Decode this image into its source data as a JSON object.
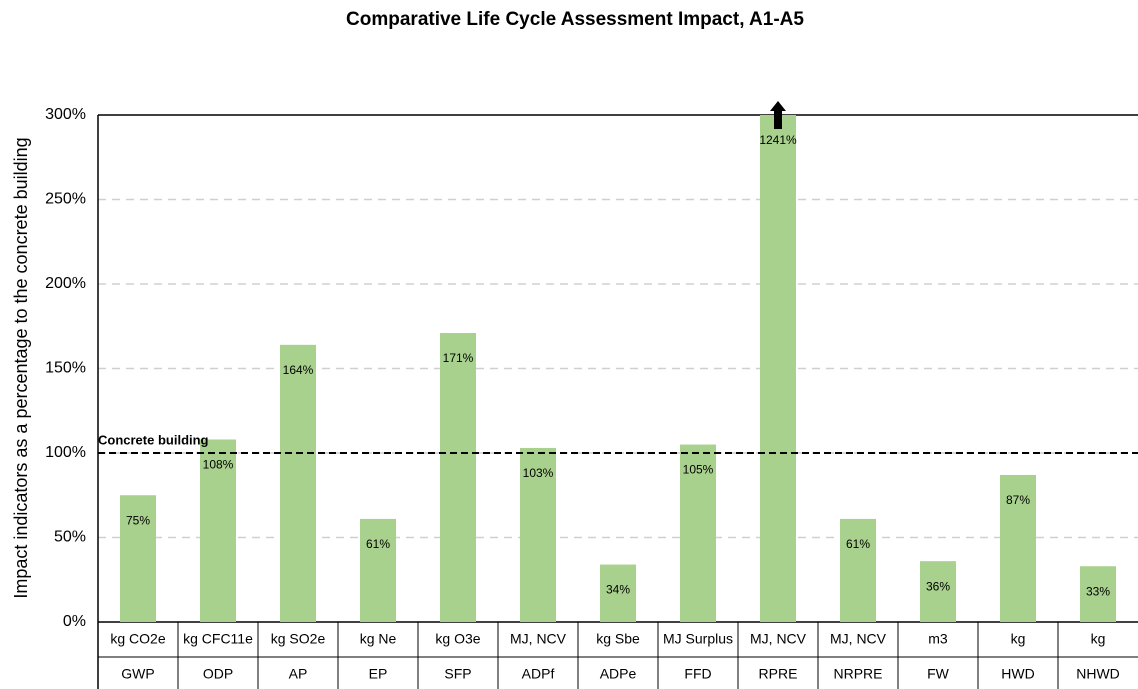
{
  "chart_data": {
    "type": "bar",
    "title": "Comparative Life Cycle Assessment Impact, A1-A5",
    "ylabel": "Impact indicators  as a percentage to the concrete building",
    "categories": [
      "GWP",
      "ODP",
      "AP",
      "EP",
      "SFP",
      "ADPf",
      "ADPe",
      "FFD",
      "RPRE",
      "NRPRE",
      "FW",
      "HWD",
      "NHWD"
    ],
    "units": [
      "kg CO2e",
      "kg CFC11e",
      "kg SO2e",
      "kg Ne",
      "kg O3e",
      "MJ, NCV",
      "kg Sbe",
      "MJ Surplus",
      "MJ, NCV",
      "MJ, NCV",
      "m3",
      "kg",
      "kg"
    ],
    "values": [
      75,
      108,
      164,
      61,
      171,
      103,
      34,
      105,
      1241,
      61,
      36,
      87,
      33
    ],
    "value_labels": [
      "75%",
      "108%",
      "164%",
      "61%",
      "171%",
      "103%",
      "34%",
      "105%",
      "1241%",
      "61%",
      "36%",
      "87%",
      "33%"
    ],
    "color": "#a9d18e",
    "ylim": [
      0,
      300
    ],
    "yticks": [
      {
        "value": 0,
        "label": "0%"
      },
      {
        "value": 50,
        "label": "50%"
      },
      {
        "value": 100,
        "label": "100%"
      },
      {
        "value": 150,
        "label": "150%"
      },
      {
        "value": 200,
        "label": "200%"
      },
      {
        "value": 250,
        "label": "250%"
      },
      {
        "value": 300,
        "label": "300%"
      }
    ],
    "grid": true,
    "reference_line": {
      "value": 100,
      "label": "Concrete building"
    }
  }
}
